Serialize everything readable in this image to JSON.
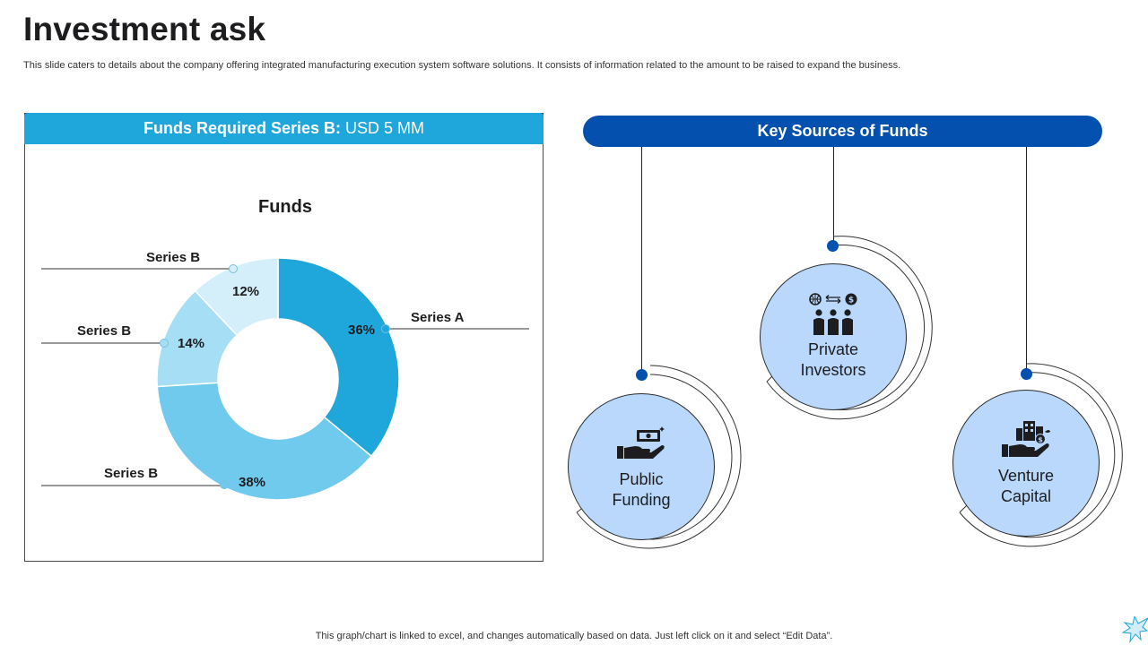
{
  "page": {
    "title": "Investment ask",
    "subtitle": "This slide caters to details about the company offering integrated manufacturing execution system software solutions. It consists of information related to the amount to be raised to expand the business.",
    "footnote": "This graph/chart is linked to excel,  and changes automatically based on data. Just left click on it and select “Edit Data”."
  },
  "funds_panel": {
    "header_bold": "Funds Required Series B:",
    "header_amount": "USD 5 MM"
  },
  "chart_data": {
    "type": "pie",
    "title": "Funds",
    "categories": [
      "Series A",
      "Series B",
      "Series B",
      "Series B"
    ],
    "values": [
      36,
      38,
      14,
      12
    ],
    "value_labels": [
      "36%",
      "38%",
      "14%",
      "12%"
    ],
    "unit": "%",
    "colors": [
      "#1fa6db",
      "#6fcaed",
      "#a6dff5",
      "#d4effa"
    ],
    "legend": "none"
  },
  "sources": {
    "header": "Key Sources of Funds",
    "items": [
      {
        "name": "public-funding",
        "label": "Public\nFunding",
        "icon": "hand-money-icon"
      },
      {
        "name": "private-investors",
        "label": "Private\nInvestors",
        "icon": "investors-icon"
      },
      {
        "name": "venture-capital",
        "label": "Venture\nCapital",
        "icon": "hand-building-icon"
      }
    ]
  },
  "colors": {
    "accent_light": "#1fa6db",
    "accent_dark": "#0450ae",
    "circle_fill": "#b9d8fb"
  }
}
